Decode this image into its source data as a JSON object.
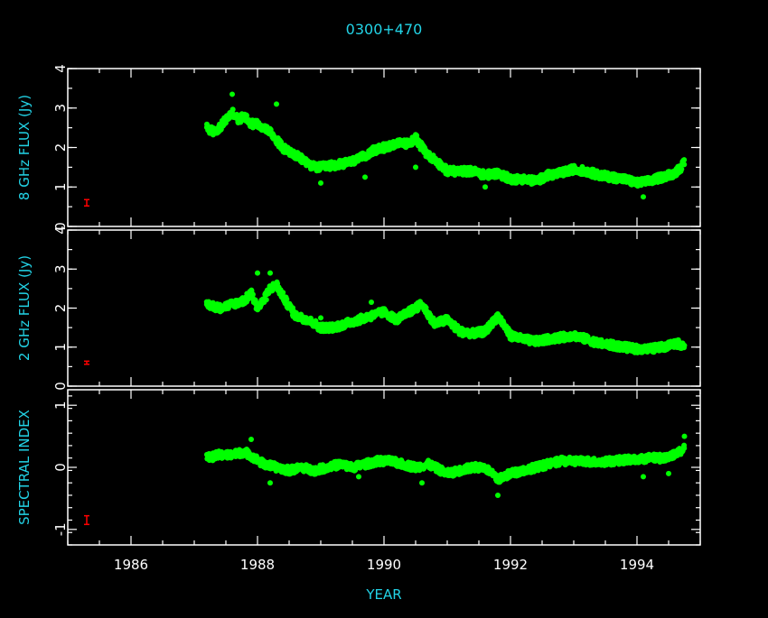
{
  "chart_data": {
    "type": "scatter",
    "title": "0300+470",
    "xlabel": "YEAR",
    "xlim": [
      1985.0,
      1995.0
    ],
    "x_ticks": [
      1986,
      1988,
      1990,
      1992,
      1994
    ],
    "x_tick_labels": [
      "1986",
      "1988",
      "1990",
      "1992",
      "1994"
    ],
    "point_color": "#00ff00",
    "errorbar_color": "#ff0000",
    "label_color": "#22d3e6",
    "panels": [
      {
        "id": "flux8",
        "ylabel": "8 GHz FLUX (Jy)",
        "ylim": [
          0,
          4
        ],
        "y_ticks": [
          0,
          1,
          2,
          3,
          4
        ],
        "y_tick_labels": [
          "0",
          "1",
          "2",
          "3",
          "4"
        ],
        "series": [
          {
            "x": [
              1987.2,
              1987.3,
              1987.4,
              1987.5,
              1987.6,
              1987.7,
              1987.8,
              1987.9,
              1988.0,
              1988.1,
              1988.2,
              1988.3,
              1988.4,
              1988.5,
              1988.6,
              1988.7,
              1988.8,
              1988.9,
              1989.0,
              1989.2,
              1989.4,
              1989.6,
              1989.8,
              1990.0,
              1990.2,
              1990.4,
              1990.5,
              1990.6,
              1990.7,
              1990.8,
              1991.0,
              1991.2,
              1991.4,
              1991.6,
              1991.8,
              1992.0,
              1992.2,
              1992.4,
              1992.6,
              1992.8,
              1993.0,
              1993.2,
              1993.4,
              1993.6,
              1993.8,
              1994.0,
              1994.2,
              1994.4,
              1994.6,
              1994.75
            ],
            "y": [
              2.5,
              2.4,
              2.5,
              2.7,
              2.9,
              2.7,
              2.8,
              2.6,
              2.6,
              2.5,
              2.4,
              2.2,
              2.0,
              1.9,
              1.8,
              1.7,
              1.6,
              1.5,
              1.5,
              1.55,
              1.6,
              1.7,
              1.9,
              2.0,
              2.1,
              2.1,
              2.25,
              2.0,
              1.8,
              1.7,
              1.4,
              1.4,
              1.4,
              1.3,
              1.35,
              1.2,
              1.2,
              1.15,
              1.3,
              1.35,
              1.45,
              1.4,
              1.3,
              1.25,
              1.2,
              1.1,
              1.15,
              1.25,
              1.35,
              1.6
            ]
          }
        ],
        "outliers": {
          "x": [
            1987.6,
            1988.3,
            1989.0,
            1989.7,
            1990.0,
            1990.5,
            1991.6,
            1994.1
          ],
          "y": [
            3.35,
            3.1,
            1.1,
            1.25,
            1.9,
            1.5,
            1.0,
            0.75
          ]
        },
        "errorbar": {
          "x": 1985.3,
          "y": 0.6,
          "err": 0.08
        }
      },
      {
        "id": "flux2",
        "ylabel": "2 GHz FLUX (Jy)",
        "ylim": [
          0,
          4
        ],
        "y_ticks": [
          0,
          1,
          2,
          3,
          4
        ],
        "y_tick_labels": [
          "0",
          "1",
          "2",
          "3",
          "4"
        ],
        "series": [
          {
            "x": [
              1987.2,
              1987.4,
              1987.6,
              1987.8,
              1987.9,
              1988.0,
              1988.1,
              1988.2,
              1988.3,
              1988.4,
              1988.6,
              1988.8,
              1989.0,
              1989.2,
              1989.4,
              1989.6,
              1989.8,
              1990.0,
              1990.2,
              1990.4,
              1990.6,
              1990.8,
              1991.0,
              1991.2,
              1991.4,
              1991.6,
              1991.8,
              1992.0,
              1992.2,
              1992.4,
              1992.6,
              1992.8,
              1993.0,
              1993.2,
              1993.4,
              1993.6,
              1993.8,
              1994.0,
              1994.2,
              1994.4,
              1994.6,
              1994.75
            ],
            "y": [
              2.1,
              2.0,
              2.1,
              2.2,
              2.4,
              2.0,
              2.2,
              2.5,
              2.6,
              2.3,
              1.8,
              1.7,
              1.5,
              1.5,
              1.6,
              1.7,
              1.8,
              1.9,
              1.7,
              1.9,
              2.1,
              1.6,
              1.7,
              1.4,
              1.35,
              1.4,
              1.8,
              1.3,
              1.2,
              1.15,
              1.2,
              1.25,
              1.3,
              1.2,
              1.1,
              1.05,
              1.0,
              0.95,
              0.95,
              1.0,
              1.1,
              1.05
            ]
          }
        ],
        "outliers": {
          "x": [
            1988.0,
            1988.2,
            1989.0,
            1989.8
          ],
          "y": [
            2.9,
            2.9,
            1.75,
            2.15
          ]
        },
        "errorbar": {
          "x": 1985.3,
          "y": 0.6,
          "err": 0.04
        }
      },
      {
        "id": "spectral",
        "ylabel": "SPECTRAL INDEX",
        "ylim": [
          -1.25,
          1.25
        ],
        "y_ticks": [
          -1,
          0,
          1
        ],
        "y_tick_labels": [
          "-1",
          "0",
          "1"
        ],
        "minor_step": 0.2,
        "series": [
          {
            "x": [
              1987.2,
              1987.4,
              1987.6,
              1987.8,
              1987.95,
              1988.1,
              1988.3,
              1988.5,
              1988.7,
              1988.9,
              1989.1,
              1989.3,
              1989.5,
              1989.7,
              1989.9,
              1990.1,
              1990.3,
              1990.5,
              1990.7,
              1991.0,
              1991.2,
              1991.4,
              1991.6,
              1991.8,
              1992.0,
              1992.2,
              1992.4,
              1992.6,
              1992.8,
              1993.0,
              1993.2,
              1993.4,
              1993.6,
              1993.8,
              1994.0,
              1994.2,
              1994.4,
              1994.6,
              1994.75
            ],
            "y": [
              0.15,
              0.2,
              0.2,
              0.25,
              0.15,
              0.05,
              0.0,
              -0.05,
              0.0,
              -0.05,
              0.0,
              0.05,
              0.0,
              0.05,
              0.1,
              0.1,
              0.05,
              0.0,
              0.05,
              -0.1,
              -0.05,
              0.0,
              0.0,
              -0.2,
              -0.1,
              -0.05,
              0.0,
              0.05,
              0.1,
              0.1,
              0.1,
              0.08,
              0.1,
              0.12,
              0.12,
              0.15,
              0.15,
              0.2,
              0.3
            ]
          }
        ],
        "outliers": {
          "x": [
            1987.9,
            1988.2,
            1989.6,
            1990.6,
            1991.8,
            1994.1,
            1994.5,
            1994.75
          ],
          "y": [
            0.45,
            -0.25,
            -0.15,
            -0.25,
            -0.45,
            -0.15,
            -0.1,
            0.5
          ]
        },
        "errorbar": {
          "x": 1985.3,
          "y": -0.85,
          "err": 0.07
        }
      }
    ]
  }
}
